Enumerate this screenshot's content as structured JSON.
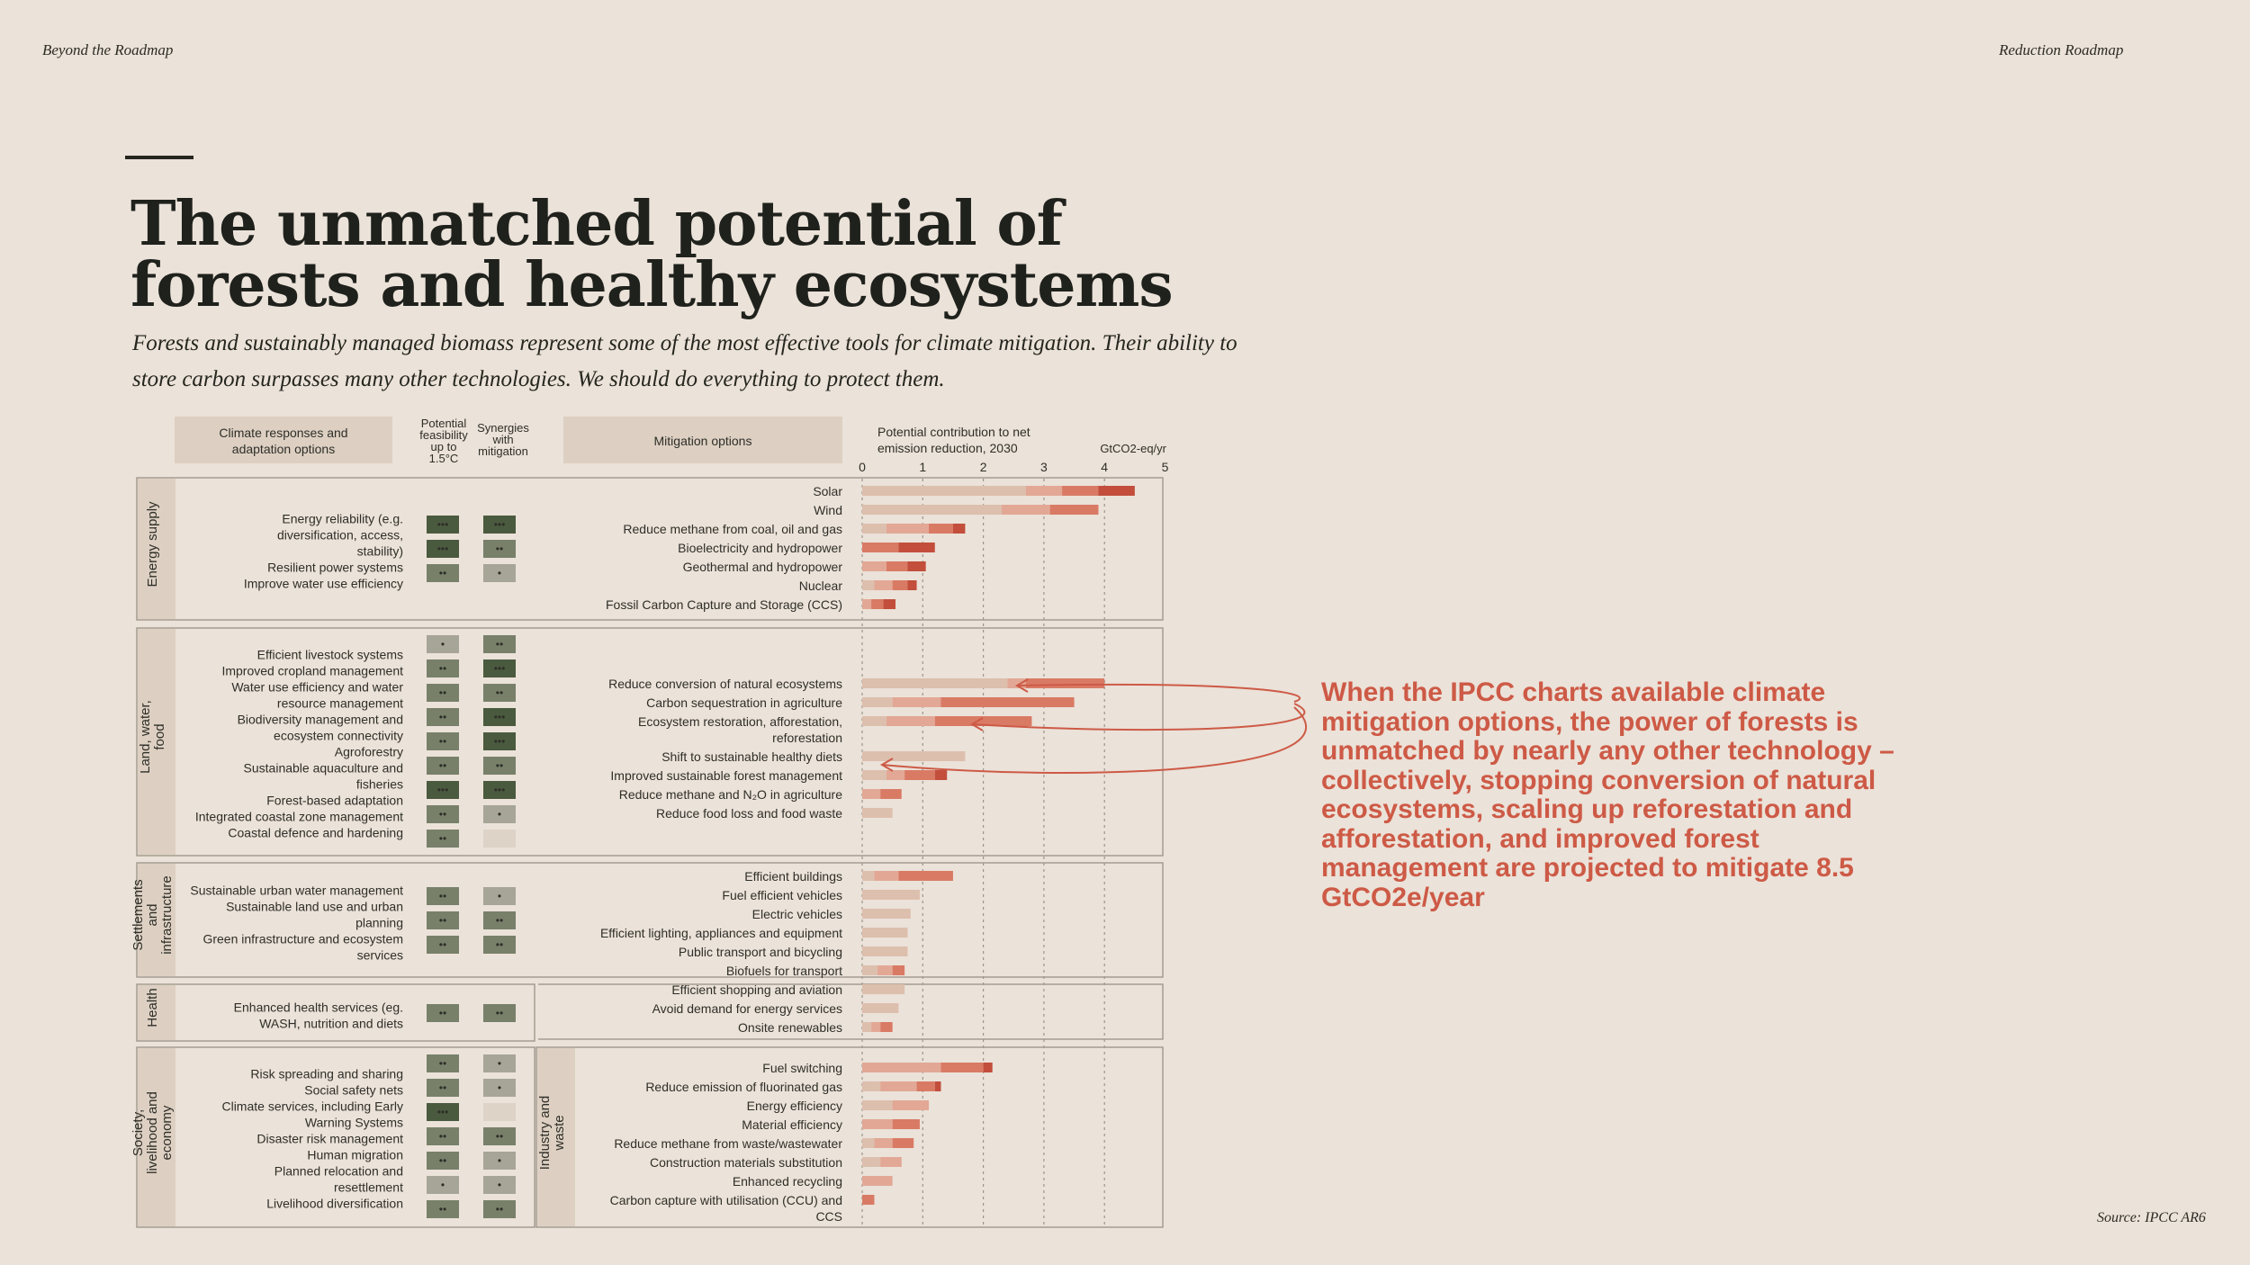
{
  "header": {
    "left": "Beyond the Roadmap",
    "right": "Reduction Roadmap"
  },
  "title": "The unmatched potential of forests and healthy ecosystems",
  "subtitle": "Forests and sustainably managed biomass represent some of the most effective tools for climate mitigation. Their ability to store carbon surpasses many other technologies. We should do everything to protect them.",
  "callout": "When the IPCC charts available climate mitigation options, the power of forests is unmatched by nearly any other technology – collectively, stopping conversion of natural ecosystems, scaling up reforestation and afforestation, and improved forest management are projected to mitigate 8.5 GtCO2e/year",
  "source": "Source: IPCC AR6",
  "colors": {
    "background": "#ebe2d9",
    "accent": "#cd5a46",
    "bar_shades": [
      "#ddbfae",
      "#e2a895",
      "#d97a65",
      "#c24e3b"
    ],
    "dots_high": "#4a5a3e",
    "dots_medium": "#78806a",
    "dots_low": "#a6a597",
    "dots_none": "#ddd3c7"
  },
  "chart_data": {
    "type": "bar",
    "orientation": "horizontal",
    "stacked": true,
    "columns": {
      "adaptation": "Climate responses and adaptation options",
      "feasibility": "Potential feasibility up to 1.5°C",
      "synergies": "Synergies with mitigation",
      "mitigation": "Mitigation options",
      "potential": "Potential contribution to net emission reduction, 2030"
    },
    "unit": "GtCO2-eq/yr",
    "xlim": [
      0,
      5
    ],
    "ticks": [
      "0",
      "1",
      "2",
      "3",
      "4",
      "5"
    ],
    "grid": "dashed vertical",
    "legend": "none",
    "sectors": [
      {
        "name": "Energy supply",
        "adaptation_options": [
          {
            "label": "Energy reliability (e.g. diversification, access, stability)",
            "feasibility": 3,
            "synergies": 3
          },
          {
            "label": "Resilient power systems",
            "feasibility": 3,
            "synergies": 2
          },
          {
            "label": "Improve water use efficiency",
            "feasibility": 2,
            "synergies": 1
          }
        ],
        "mitigation_options": [
          {
            "label": "Solar",
            "segments": [
              2.7,
              0.6,
              0.6,
              0.6
            ]
          },
          {
            "label": "Wind",
            "segments": [
              2.3,
              0.8,
              0.8,
              0
            ]
          },
          {
            "label": "Reduce methane from coal, oil and gas",
            "segments": [
              0.4,
              0.7,
              0.4,
              0.2
            ]
          },
          {
            "label": "Bioelectricity and hydropower",
            "segments": [
              0,
              0,
              0.6,
              0.6
            ]
          },
          {
            "label": "Geothermal and hydropower",
            "segments": [
              0,
              0.4,
              0.35,
              0.3
            ]
          },
          {
            "label": "Nuclear",
            "segments": [
              0.2,
              0.3,
              0.25,
              0.15
            ]
          },
          {
            "label": "Fossil Carbon Capture and Storage (CCS)",
            "segments": [
              0,
              0.15,
              0.2,
              0.2
            ]
          }
        ]
      },
      {
        "name": "Land, water, food",
        "adaptation_options": [
          {
            "label": "Efficient livestock systems",
            "feasibility": 1,
            "synergies": 2
          },
          {
            "label": "Improved cropland management",
            "feasibility": 2,
            "synergies": 3
          },
          {
            "label": "Water use efficiency and water resource management",
            "feasibility": 2,
            "synergies": 2
          },
          {
            "label": "Biodiversity management and ecosystem connectivity",
            "feasibility": 2,
            "synergies": 3
          },
          {
            "label": "Agroforestry",
            "feasibility": 2,
            "synergies": 3
          },
          {
            "label": "Sustainable aquaculture and fisheries",
            "feasibility": 2,
            "synergies": 2
          },
          {
            "label": "Forest-based adaptation",
            "feasibility": 3,
            "synergies": 3
          },
          {
            "label": "Integrated coastal zone management",
            "feasibility": 2,
            "synergies": 1
          },
          {
            "label": "Coastal defence and hardening",
            "feasibility": 2,
            "synergies": null
          }
        ],
        "mitigation_options": [
          {
            "label": "Reduce conversion of natural ecosystems",
            "segments": [
              2.4,
              0.3,
              1.3,
              0
            ]
          },
          {
            "label": "Carbon sequestration in agriculture",
            "segments": [
              0.5,
              0.8,
              2.2,
              0
            ]
          },
          {
            "label": "Ecosystem restoration, afforestation, reforestation",
            "segments": [
              0.4,
              0.8,
              1.6,
              0
            ]
          },
          {
            "label": "Shift to sustainable healthy diets",
            "segments": [
              1.7,
              0,
              0,
              0
            ]
          },
          {
            "label": "Improved sustainable forest management",
            "segments": [
              0.4,
              0.3,
              0.5,
              0.2
            ]
          },
          {
            "label": "Reduce methane and N₂O in agriculture",
            "segments": [
              0,
              0.3,
              0.35,
              0
            ]
          },
          {
            "label": "Reduce food loss and food waste",
            "segments": [
              0.5,
              0,
              0,
              0
            ]
          }
        ]
      },
      {
        "name": "Settlements and infrastructure",
        "adaptation_options": [
          {
            "label": "Sustainable urban water management",
            "feasibility": 2,
            "synergies": 1
          },
          {
            "label": "Sustainable land use and urban planning",
            "feasibility": 2,
            "synergies": 2
          },
          {
            "label": "Green infrastructure and ecosystem services",
            "feasibility": 2,
            "synergies": 2
          }
        ],
        "mitigation_options": [
          {
            "label": "Efficient buildings",
            "segments": [
              0.2,
              0.4,
              0.9,
              0
            ]
          },
          {
            "label": "Fuel efficient vehicles",
            "segments": [
              0.95,
              0,
              0,
              0
            ]
          },
          {
            "label": "Electric vehicles",
            "segments": [
              0.8,
              0,
              0,
              0
            ]
          },
          {
            "label": "Efficient lighting, appliances and equipment",
            "segments": [
              0.75,
              0,
              0,
              0
            ]
          },
          {
            "label": "Public transport and bicycling",
            "segments": [
              0.75,
              0,
              0,
              0
            ]
          },
          {
            "label": "Biofuels for transport",
            "segments": [
              0.25,
              0.25,
              0.2,
              0
            ]
          },
          {
            "label": "Efficient shopping and aviation",
            "segments": [
              0.7,
              0,
              0,
              0
            ]
          },
          {
            "label": "Avoid demand for energy services",
            "segments": [
              0.6,
              0,
              0,
              0
            ]
          },
          {
            "label": "Onsite renewables",
            "segments": [
              0.15,
              0.15,
              0.2,
              0
            ]
          }
        ]
      },
      {
        "name": "Health",
        "adaptation_options": [
          {
            "label": "Enhanced health services (eg. WASH, nutrition and diets",
            "feasibility": 2,
            "synergies": 2
          }
        ],
        "mitigation_options": []
      },
      {
        "name": "Society, livelihood and economy",
        "adaptation_options": [
          {
            "label": "Risk spreading and sharing",
            "feasibility": 2,
            "synergies": 1
          },
          {
            "label": "Social safety nets",
            "feasibility": 2,
            "synergies": 1
          },
          {
            "label": "Climate services, including Early Warning Systems",
            "feasibility": 3,
            "synergies": null
          },
          {
            "label": "Disaster risk management",
            "feasibility": 2,
            "synergies": 2
          },
          {
            "label": "Human migration",
            "feasibility": 2,
            "synergies": 1
          },
          {
            "label": "Planned relocation and resettlement",
            "feasibility": 1,
            "synergies": 1
          },
          {
            "label": "Livelihood diversification",
            "feasibility": 2,
            "synergies": 2
          }
        ],
        "mitigation_options": []
      },
      {
        "name": "Industry and waste",
        "adaptation_options": [],
        "mitigation_options": [
          {
            "label": "Fuel switching",
            "segments": [
              0,
              1.3,
              0.7,
              0.15
            ]
          },
          {
            "label": "Reduce emission of fluorinated gas",
            "segments": [
              0.3,
              0.6,
              0.3,
              0.1
            ]
          },
          {
            "label": "Energy efficiency",
            "segments": [
              0.5,
              0.6,
              0,
              0
            ]
          },
          {
            "label": "Material efficiency",
            "segments": [
              0,
              0.5,
              0.45,
              0
            ]
          },
          {
            "label": "Reduce methane from waste/wastewater",
            "segments": [
              0.2,
              0.3,
              0.35,
              0
            ]
          },
          {
            "label": "Construction materials substitution",
            "segments": [
              0.3,
              0.35,
              0,
              0
            ]
          },
          {
            "label": "Enhanced recycling",
            "segments": [
              0,
              0.5,
              0,
              0
            ]
          },
          {
            "label": "Carbon capture with utilisation (CCU) and CCS",
            "segments": [
              0,
              0,
              0.2,
              0
            ]
          }
        ]
      }
    ]
  }
}
